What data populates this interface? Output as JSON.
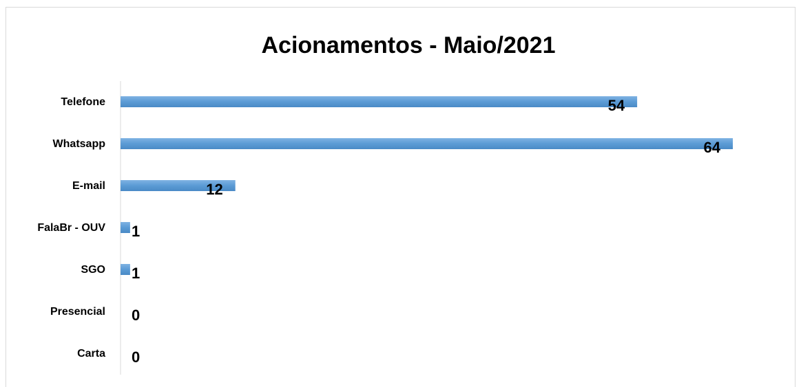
{
  "chart_data": {
    "type": "barh",
    "title": "Acionamentos - Maio/2021",
    "categories": [
      "Telefone",
      "Whatsapp",
      "E-mail",
      "FalaBr - OUV",
      "SGO",
      "Presencial",
      "Carta"
    ],
    "values": [
      54,
      64,
      12,
      1,
      1,
      0,
      0
    ],
    "color": "#5b9bd5"
  }
}
